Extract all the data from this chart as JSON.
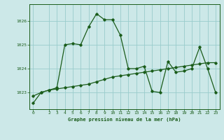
{
  "title": "Graphe pression niveau de la mer (hPa)",
  "background_color": "#cce8e8",
  "grid_color": "#99cccc",
  "line_color": "#1a5c1a",
  "ylim": [
    1022.3,
    1026.7
  ],
  "xlim": [
    -0.5,
    23.5
  ],
  "yticks": [
    1023,
    1024,
    1025,
    1026
  ],
  "xticks": [
    0,
    2,
    3,
    4,
    5,
    6,
    7,
    8,
    9,
    10,
    11,
    12,
    13,
    14,
    15,
    16,
    17,
    18,
    19,
    20,
    21,
    22,
    23
  ],
  "series1_x": [
    0,
    1,
    2,
    3,
    4,
    5,
    6,
    7,
    8,
    9,
    10,
    11,
    12,
    13,
    14,
    15,
    16,
    17,
    18,
    19,
    20,
    21,
    22,
    23
  ],
  "series1_y": [
    1022.55,
    1023.0,
    1023.1,
    1023.2,
    1025.0,
    1025.05,
    1025.0,
    1025.75,
    1026.3,
    1026.05,
    1026.05,
    1025.4,
    1024.0,
    1024.0,
    1024.1,
    1023.05,
    1023.0,
    1024.3,
    1023.85,
    1023.9,
    1024.0,
    1024.9,
    1024.0,
    1023.0
  ],
  "series2_x": [
    0,
    1,
    2,
    3,
    4,
    5,
    6,
    7,
    8,
    9,
    10,
    11,
    12,
    13,
    14,
    15,
    16,
    17,
    18,
    19,
    20,
    21,
    22,
    23
  ],
  "series2_y": [
    1022.85,
    1023.0,
    1023.1,
    1023.15,
    1023.2,
    1023.25,
    1023.3,
    1023.35,
    1023.45,
    1023.55,
    1023.65,
    1023.7,
    1023.75,
    1023.8,
    1023.85,
    1023.9,
    1023.95,
    1024.0,
    1024.05,
    1024.1,
    1024.15,
    1024.2,
    1024.25,
    1024.25
  ]
}
